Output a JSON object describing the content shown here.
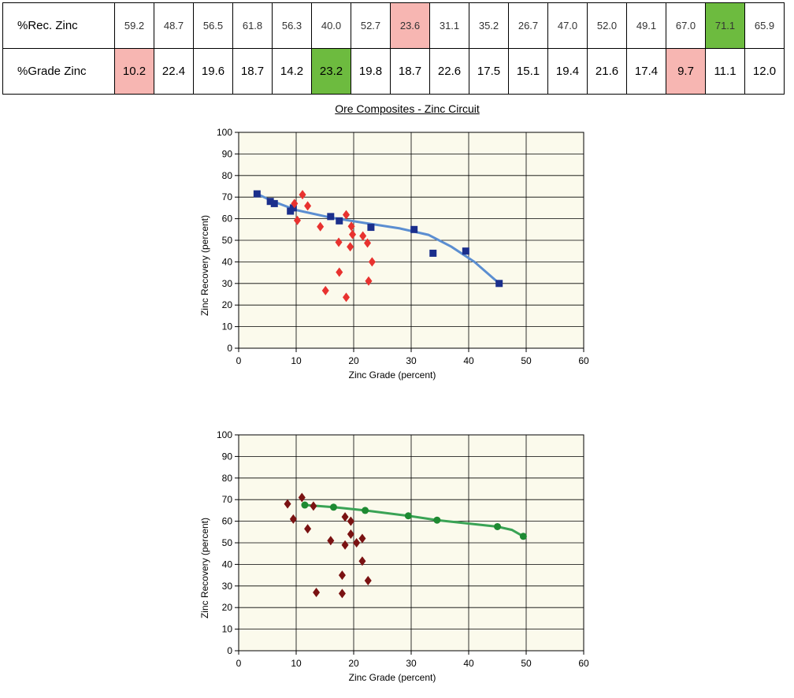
{
  "table": {
    "rows": [
      {
        "label": "%Rec. Zinc",
        "values": [
          "59.2",
          "48.7",
          "56.5",
          "61.8",
          "56.3",
          "40.0",
          "52.7",
          "23.6",
          "31.1",
          "35.2",
          "26.7",
          "47.0",
          "52.0",
          "49.1",
          "67.0",
          "71.1",
          "65.9"
        ],
        "highlights": {
          "7": "#f7b6b2",
          "15": "#6dbb3f"
        }
      },
      {
        "label": "%Grade  Zinc",
        "values": [
          "10.2",
          "22.4",
          "19.6",
          "18.7",
          "14.2",
          "23.2",
          "19.8",
          "18.7",
          "22.6",
          "17.5",
          "15.1",
          "19.4",
          "21.6",
          "17.4",
          "9.7",
          "11.1",
          "12.0"
        ],
        "highlights": {
          "0": "#f7b6b2",
          "5": "#6dbb3f",
          "14": "#f7b6b2"
        }
      }
    ]
  },
  "figure_title": "Ore Composites - Zinc Circuit",
  "colors": {
    "plot_bg": "#fbfaec",
    "blue_marker": "#1b2f8c",
    "blue_line": "#5b8ed1",
    "red_marker": "#e8322f",
    "green_marker": "#1e8a32",
    "green_line": "#3aa355",
    "darkred_marker": "#7a1212"
  },
  "chart_data": [
    {
      "type": "scatter",
      "title": "",
      "xlabel": "Zinc Grade (percent)",
      "ylabel": "Zinc Recovery (percent)",
      "xlim": [
        0,
        60
      ],
      "ylim": [
        0,
        100
      ],
      "xticks": [
        0,
        10,
        20,
        30,
        40,
        50,
        60
      ],
      "yticks": [
        0,
        10,
        20,
        30,
        40,
        50,
        60,
        70,
        80,
        90,
        100
      ],
      "grid": true,
      "series": [
        {
          "marker": "square",
          "color": "blue_marker",
          "points": [
            [
              3.2,
              71.5
            ],
            [
              5.5,
              68
            ],
            [
              6.2,
              67
            ],
            [
              9,
              63.5
            ],
            [
              9.5,
              65
            ],
            [
              16,
              61
            ],
            [
              17.5,
              59
            ],
            [
              23,
              56
            ],
            [
              30.5,
              55
            ],
            [
              33.8,
              44
            ],
            [
              39.5,
              45
            ],
            [
              45.3,
              30
            ]
          ]
        },
        {
          "marker": "diamond",
          "color": "red_marker",
          "points": [
            [
              10.2,
              59.2
            ],
            [
              22.4,
              48.7
            ],
            [
              19.6,
              56.5
            ],
            [
              18.7,
              61.8
            ],
            [
              14.2,
              56.3
            ],
            [
              23.2,
              40
            ],
            [
              19.8,
              52.7
            ],
            [
              18.7,
              23.6
            ],
            [
              22.6,
              31.1
            ],
            [
              17.5,
              35.2
            ],
            [
              15.1,
              26.7
            ],
            [
              19.4,
              47
            ],
            [
              21.6,
              52
            ],
            [
              17.4,
              49.1
            ],
            [
              9.7,
              67
            ],
            [
              11.1,
              71.1
            ],
            [
              12,
              65.9
            ]
          ]
        }
      ],
      "trendline": {
        "color": "blue_line",
        "points": [
          [
            3.2,
            71.5
          ],
          [
            6,
            68
          ],
          [
            10,
            64
          ],
          [
            16,
            60.5
          ],
          [
            22,
            58
          ],
          [
            28,
            55.5
          ],
          [
            33,
            52.5
          ],
          [
            37,
            47
          ],
          [
            41,
            40
          ],
          [
            45.3,
            30
          ]
        ]
      }
    },
    {
      "type": "scatter",
      "title": "",
      "xlabel": "Zinc Grade (percent)",
      "ylabel": "Zinc Recovery (percent)",
      "xlim": [
        0,
        60
      ],
      "ylim": [
        0,
        100
      ],
      "xticks": [
        0,
        10,
        20,
        30,
        40,
        50,
        60
      ],
      "yticks": [
        0,
        10,
        20,
        30,
        40,
        50,
        60,
        70,
        80,
        90,
        100
      ],
      "grid": true,
      "series": [
        {
          "marker": "circle",
          "color": "green_marker",
          "points": [
            [
              11.5,
              67.5
            ],
            [
              16.5,
              66.5
            ],
            [
              22,
              65
            ],
            [
              29.5,
              62.5
            ],
            [
              34.5,
              60.5
            ],
            [
              45,
              57.5
            ],
            [
              49.5,
              53
            ]
          ]
        },
        {
          "marker": "diamond",
          "color": "darkred_marker",
          "points": [
            [
              8.5,
              68
            ],
            [
              9.5,
              61
            ],
            [
              11,
              71
            ],
            [
              12,
              56.5
            ],
            [
              13.5,
              27
            ],
            [
              13,
              67
            ],
            [
              16,
              51
            ],
            [
              18,
              35
            ],
            [
              18,
              26.5
            ],
            [
              18.5,
              49
            ],
            [
              18.5,
              62
            ],
            [
              19.5,
              60
            ],
            [
              19.5,
              54
            ],
            [
              20.5,
              50
            ],
            [
              21.5,
              52
            ],
            [
              21.5,
              41.5
            ],
            [
              22.5,
              32.5
            ]
          ]
        }
      ],
      "trendline": {
        "color": "green_line",
        "points": [
          [
            11.5,
            67.5
          ],
          [
            16.5,
            66.5
          ],
          [
            22,
            65
          ],
          [
            29.5,
            62.5
          ],
          [
            34.5,
            60.5
          ],
          [
            45,
            57.5
          ],
          [
            47.5,
            56
          ],
          [
            49.5,
            53
          ]
        ]
      }
    }
  ]
}
